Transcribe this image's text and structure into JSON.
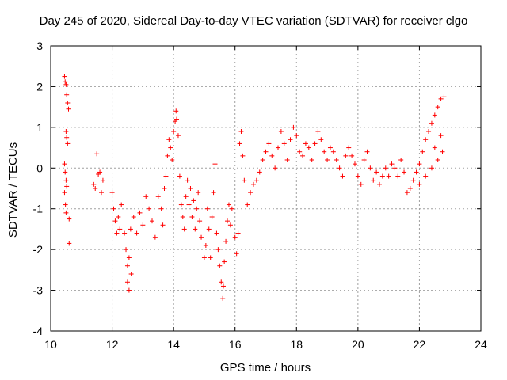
{
  "chart_data": {
    "type": "scatter",
    "title": "Day 245 of 2020, Sidereal Day-to-day VTEC variation (SDTVAR) for receiver clgo",
    "xlabel": "GPS time / hours",
    "ylabel": "SDTVAR / TECUs",
    "xlim": [
      10,
      24
    ],
    "ylim": [
      -4,
      3
    ],
    "xticks": [
      "10",
      "12",
      "14",
      "16",
      "18",
      "20",
      "22",
      "24"
    ],
    "yticks": [
      "3",
      "2",
      "1",
      "0",
      "-1",
      "-2",
      "-3",
      "-4"
    ],
    "grid": true,
    "marker": "+",
    "marker_color": "#ff0000",
    "series": [
      {
        "name": "SDTVAR",
        "points": [
          [
            10.45,
            2.25
          ],
          [
            10.47,
            2.12
          ],
          [
            10.5,
            2.05
          ],
          [
            10.52,
            1.8
          ],
          [
            10.55,
            1.6
          ],
          [
            10.58,
            1.45
          ],
          [
            10.5,
            0.9
          ],
          [
            10.52,
            0.75
          ],
          [
            10.55,
            0.6
          ],
          [
            10.45,
            0.1
          ],
          [
            10.47,
            -0.1
          ],
          [
            10.5,
            -0.3
          ],
          [
            10.45,
            -0.6
          ],
          [
            10.48,
            -0.9
          ],
          [
            10.5,
            -1.1
          ],
          [
            10.52,
            -0.45
          ],
          [
            10.6,
            -1.25
          ],
          [
            10.6,
            -1.85
          ],
          [
            11.4,
            -0.4
          ],
          [
            11.45,
            -0.5
          ],
          [
            11.5,
            0.35
          ],
          [
            11.55,
            -0.15
          ],
          [
            11.6,
            -0.1
          ],
          [
            11.65,
            -0.6
          ],
          [
            11.7,
            -0.3
          ],
          [
            12.0,
            -0.6
          ],
          [
            12.05,
            -1.0
          ],
          [
            12.1,
            -1.3
          ],
          [
            12.15,
            -1.6
          ],
          [
            12.2,
            -1.2
          ],
          [
            12.25,
            -1.5
          ],
          [
            12.3,
            -0.9
          ],
          [
            12.4,
            -1.6
          ],
          [
            12.45,
            -2.0
          ],
          [
            12.5,
            -2.4
          ],
          [
            12.5,
            -2.8
          ],
          [
            12.55,
            -3.0
          ],
          [
            12.55,
            -2.2
          ],
          [
            12.6,
            -1.5
          ],
          [
            12.62,
            -2.6
          ],
          [
            12.7,
            -1.2
          ],
          [
            12.8,
            -1.6
          ],
          [
            12.9,
            -1.1
          ],
          [
            13.0,
            -1.4
          ],
          [
            13.1,
            -0.7
          ],
          [
            13.2,
            -1.0
          ],
          [
            13.3,
            -1.3
          ],
          [
            13.4,
            -1.7
          ],
          [
            13.5,
            -0.7
          ],
          [
            13.6,
            -1.0
          ],
          [
            13.65,
            -1.4
          ],
          [
            13.7,
            -0.5
          ],
          [
            13.75,
            -0.2
          ],
          [
            13.8,
            0.3
          ],
          [
            13.85,
            0.7
          ],
          [
            13.9,
            0.5
          ],
          [
            13.95,
            0.2
          ],
          [
            14.0,
            0.9
          ],
          [
            14.05,
            1.15
          ],
          [
            14.08,
            1.4
          ],
          [
            14.1,
            1.2
          ],
          [
            14.15,
            0.8
          ],
          [
            14.2,
            -0.2
          ],
          [
            14.25,
            -0.9
          ],
          [
            14.3,
            -1.2
          ],
          [
            14.35,
            -1.5
          ],
          [
            14.4,
            -0.7
          ],
          [
            14.45,
            -0.3
          ],
          [
            14.5,
            -0.9
          ],
          [
            14.55,
            -0.5
          ],
          [
            14.6,
            -1.2
          ],
          [
            14.65,
            -0.8
          ],
          [
            14.7,
            -1.5
          ],
          [
            14.75,
            -1.0
          ],
          [
            14.8,
            -0.6
          ],
          [
            14.85,
            -1.3
          ],
          [
            14.9,
            -1.7
          ],
          [
            15.0,
            -2.2
          ],
          [
            15.05,
            -1.9
          ],
          [
            15.1,
            -1.0
          ],
          [
            15.15,
            -1.5
          ],
          [
            15.2,
            -2.2
          ],
          [
            15.25,
            -1.2
          ],
          [
            15.3,
            -0.6
          ],
          [
            15.35,
            0.1
          ],
          [
            15.4,
            -1.6
          ],
          [
            15.45,
            -2.0
          ],
          [
            15.5,
            -2.4
          ],
          [
            15.55,
            -2.8
          ],
          [
            15.6,
            -3.2
          ],
          [
            15.62,
            -2.9
          ],
          [
            15.65,
            -2.3
          ],
          [
            15.7,
            -1.8
          ],
          [
            15.75,
            -1.3
          ],
          [
            15.8,
            -0.9
          ],
          [
            15.85,
            -1.4
          ],
          [
            15.9,
            -1.0
          ],
          [
            16.0,
            -1.7
          ],
          [
            16.05,
            -2.1
          ],
          [
            16.1,
            -1.6
          ],
          [
            16.15,
            0.6
          ],
          [
            16.2,
            0.9
          ],
          [
            16.25,
            0.3
          ],
          [
            16.3,
            -0.3
          ],
          [
            16.4,
            -0.9
          ],
          [
            16.5,
            -0.6
          ],
          [
            16.6,
            -0.4
          ],
          [
            16.7,
            -0.3
          ],
          [
            16.8,
            -0.1
          ],
          [
            16.9,
            0.2
          ],
          [
            17.0,
            0.4
          ],
          [
            17.1,
            0.6
          ],
          [
            17.2,
            0.3
          ],
          [
            17.3,
            0.0
          ],
          [
            17.4,
            0.5
          ],
          [
            17.5,
            0.9
          ],
          [
            17.6,
            0.6
          ],
          [
            17.7,
            0.2
          ],
          [
            17.8,
            0.7
          ],
          [
            17.9,
            1.0
          ],
          [
            18.0,
            0.8
          ],
          [
            18.1,
            0.4
          ],
          [
            18.2,
            0.3
          ],
          [
            18.3,
            0.6
          ],
          [
            18.4,
            0.5
          ],
          [
            18.5,
            0.2
          ],
          [
            18.6,
            0.6
          ],
          [
            18.7,
            0.9
          ],
          [
            18.8,
            0.7
          ],
          [
            18.9,
            0.4
          ],
          [
            19.0,
            0.2
          ],
          [
            19.1,
            0.5
          ],
          [
            19.2,
            0.4
          ],
          [
            19.3,
            0.2
          ],
          [
            19.4,
            0.0
          ],
          [
            19.5,
            -0.2
          ],
          [
            19.6,
            0.3
          ],
          [
            19.7,
            0.5
          ],
          [
            19.8,
            0.3
          ],
          [
            19.9,
            0.1
          ],
          [
            20.0,
            -0.2
          ],
          [
            20.1,
            -0.4
          ],
          [
            20.2,
            0.2
          ],
          [
            20.3,
            0.4
          ],
          [
            20.4,
            0.0
          ],
          [
            20.5,
            -0.3
          ],
          [
            20.6,
            -0.1
          ],
          [
            20.7,
            -0.4
          ],
          [
            20.8,
            -0.2
          ],
          [
            20.9,
            0.0
          ],
          [
            21.0,
            -0.2
          ],
          [
            21.1,
            0.1
          ],
          [
            21.2,
            0.0
          ],
          [
            21.3,
            -0.2
          ],
          [
            21.4,
            0.2
          ],
          [
            21.5,
            -0.1
          ],
          [
            21.6,
            -0.6
          ],
          [
            21.7,
            -0.5
          ],
          [
            21.8,
            -0.3
          ],
          [
            21.9,
            -0.1
          ],
          [
            22.0,
            0.1
          ],
          [
            22.1,
            0.4
          ],
          [
            22.2,
            0.7
          ],
          [
            22.3,
            0.9
          ],
          [
            22.4,
            1.1
          ],
          [
            22.5,
            1.3
          ],
          [
            22.6,
            1.5
          ],
          [
            22.7,
            1.7
          ],
          [
            22.8,
            1.75
          ],
          [
            22.75,
            0.4
          ],
          [
            22.6,
            0.2
          ],
          [
            22.4,
            0.0
          ],
          [
            22.2,
            -0.2
          ],
          [
            22.0,
            -0.4
          ],
          [
            22.5,
            0.5
          ],
          [
            22.7,
            0.8
          ]
        ]
      }
    ]
  }
}
